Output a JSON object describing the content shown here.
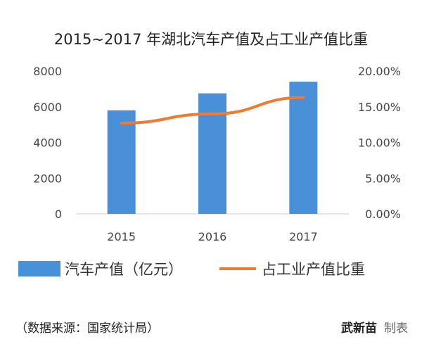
{
  "chart_data": {
    "type": "bar+line",
    "title": "2015~2017 年湖北汽车产值及占工业产值比重",
    "categories": [
      "2015",
      "2016",
      "2017"
    ],
    "series": [
      {
        "name": "汽车产值（亿元）",
        "type": "bar",
        "axis": "left",
        "values": [
          5800,
          6750,
          7400
        ],
        "color": "#4a90d9"
      },
      {
        "name": "占工业产值比重",
        "type": "line",
        "axis": "right",
        "values": [
          0.127,
          0.14,
          0.163
        ],
        "color": "#f07a30"
      }
    ],
    "y_left": {
      "ticks": [
        "0",
        "2000",
        "4000",
        "6000",
        "8000"
      ],
      "ylim": [
        0,
        8000
      ]
    },
    "y_right": {
      "ticks": [
        "0.00%",
        "5.00%",
        "10.00%",
        "15.00%",
        "20.00%"
      ],
      "ylim": [
        0,
        0.2
      ]
    },
    "legend": "bottom",
    "grid": false
  },
  "footer": {
    "source": "（数据来源：国家统计局）",
    "author": "武新苗",
    "made": "制表"
  }
}
